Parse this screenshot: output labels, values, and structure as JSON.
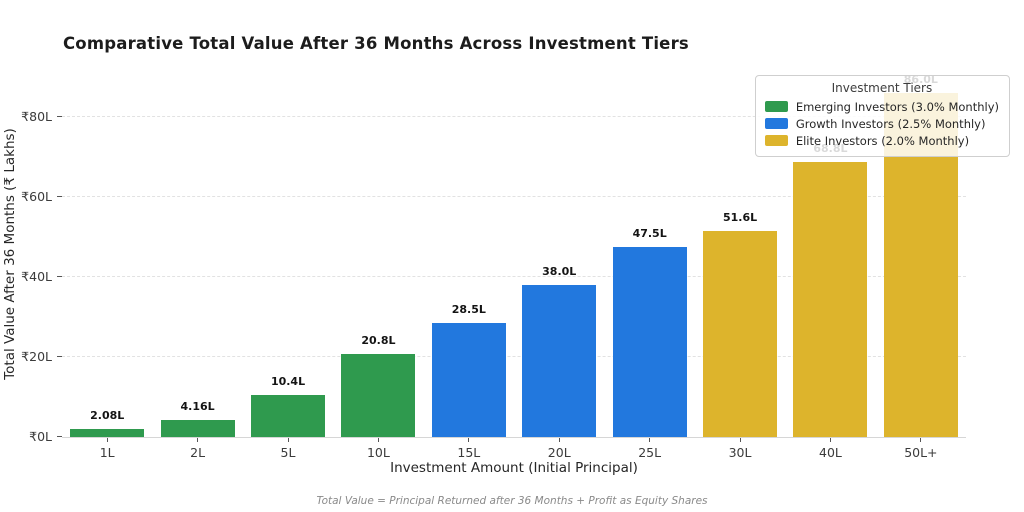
{
  "chart_data": {
    "type": "bar",
    "title": "Comparative Total Value After 36 Months Across Investment Tiers",
    "xlabel": "Investment Amount (Initial Principal)",
    "ylabel": "Total Value After 36 Months (₹ Lakhs)",
    "categories": [
      "1L",
      "2L",
      "5L",
      "10L",
      "15L",
      "20L",
      "25L",
      "30L",
      "40L",
      "50L+"
    ],
    "values": [
      2.08,
      4.16,
      10.4,
      20.8,
      28.5,
      38.0,
      47.5,
      51.6,
      68.8,
      86.0
    ],
    "bar_labels": [
      "2.08L",
      "4.16L",
      "10.4L",
      "20.8L",
      "28.5L",
      "38.0L",
      "47.5L",
      "51.6L",
      "68.8L",
      "86.0L"
    ],
    "series_index": [
      0,
      0,
      0,
      0,
      1,
      1,
      1,
      2,
      2,
      2
    ],
    "ylim": [
      0,
      92
    ],
    "ytick_values": [
      0,
      20,
      40,
      60,
      80
    ],
    "yticks": [
      "₹0L",
      "₹20L",
      "₹40L",
      "₹60L",
      "₹80L"
    ],
    "grid": "horizontal-dashed",
    "legend": {
      "title": "Investment Tiers",
      "position": "upper right",
      "entries": [
        {
          "label": "Emerging Investors (3.0% Monthly)",
          "color": "#2f9a4e"
        },
        {
          "label": "Growth Investors (2.5% Monthly)",
          "color": "#2278de"
        },
        {
          "label": "Elite Investors (2.0% Monthly)",
          "color": "#ddb42c"
        }
      ]
    },
    "footnote": "Total Value = Principal Returned after 36 Months + Profit as Equity Shares"
  }
}
